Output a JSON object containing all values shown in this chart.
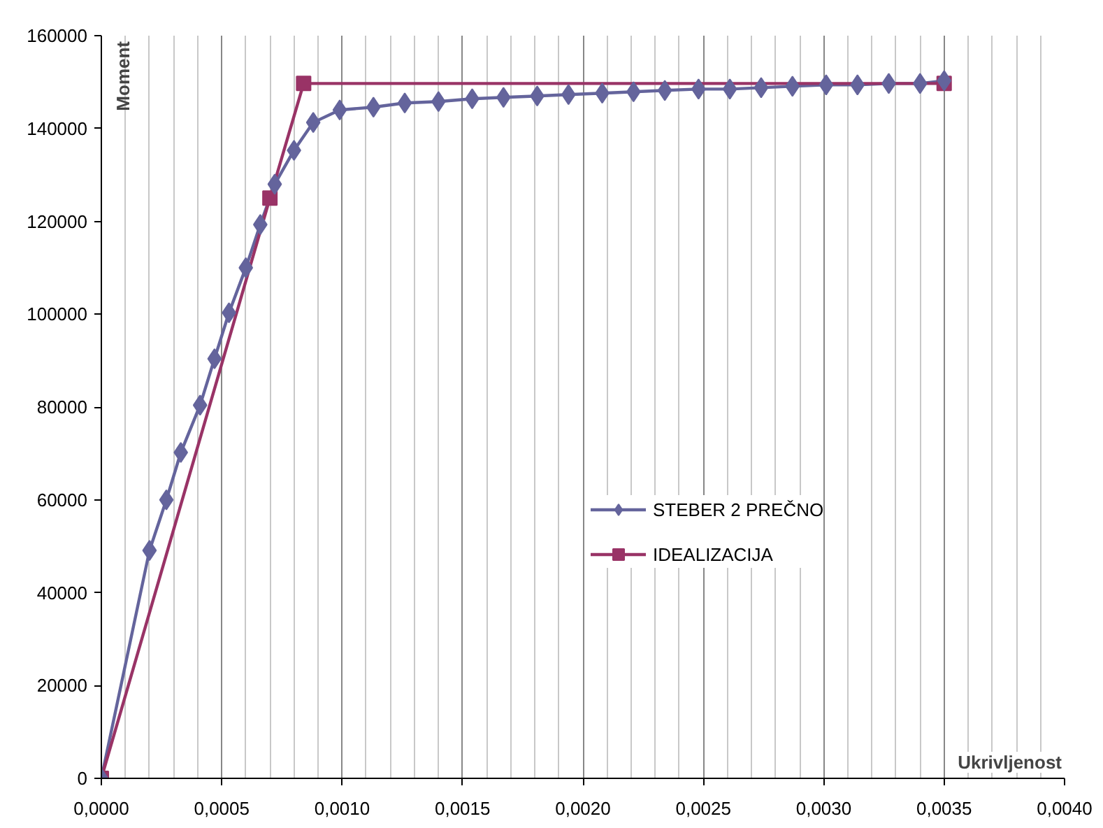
{
  "chart_data": {
    "type": "line",
    "xlabel": "Ukrivljenost",
    "ylabel": "Moment",
    "xlim": [
      0,
      0.004
    ],
    "ylim": [
      0,
      160000
    ],
    "xticks": [
      {
        "value": 0,
        "label": "0,0000"
      },
      {
        "value": 0.0005,
        "label": "0,0005"
      },
      {
        "value": 0.001,
        "label": "0,0010"
      },
      {
        "value": 0.0015,
        "label": "0,0015"
      },
      {
        "value": 0.002,
        "label": "0,0020"
      },
      {
        "value": 0.0025,
        "label": "0,0025"
      },
      {
        "value": 0.003,
        "label": "0,0030"
      },
      {
        "value": 0.0035,
        "label": "0,0035"
      },
      {
        "value": 0.004,
        "label": "0,0040"
      }
    ],
    "yticks": [
      0,
      20000,
      40000,
      60000,
      80000,
      100000,
      120000,
      140000,
      160000
    ],
    "grid": "x",
    "legend": "center",
    "line_style": "solid",
    "series": [
      {
        "name": "STEBER 2 PREČNO",
        "color": "#64649c",
        "marker": "diamond",
        "x": [
          0,
          0.0002,
          0.00027,
          0.00033,
          0.00041,
          0.00047,
          0.00053,
          0.0006,
          0.00066,
          0.00072,
          0.0008,
          0.00088,
          0.00099,
          0.00113,
          0.00126,
          0.0014,
          0.00154,
          0.00167,
          0.00181,
          0.00194,
          0.00208,
          0.00221,
          0.00234,
          0.00248,
          0.00261,
          0.00274,
          0.00287,
          0.00301,
          0.00314,
          0.00327,
          0.0034,
          0.0035
        ],
        "values": [
          0,
          49100,
          60000,
          70200,
          80400,
          90400,
          100300,
          110000,
          119300,
          128000,
          135300,
          141300,
          144000,
          144600,
          145500,
          145800,
          146400,
          146700,
          147000,
          147300,
          147600,
          147900,
          148200,
          148500,
          148500,
          148800,
          149100,
          149400,
          149400,
          149700,
          149700,
          150300
        ]
      },
      {
        "name": "IDEALIZACIJA",
        "color": "#993366",
        "marker": "square",
        "x": [
          0,
          0.0007,
          0.00084,
          0.0035
        ],
        "values": [
          0,
          125000,
          149700,
          149700
        ]
      }
    ]
  }
}
